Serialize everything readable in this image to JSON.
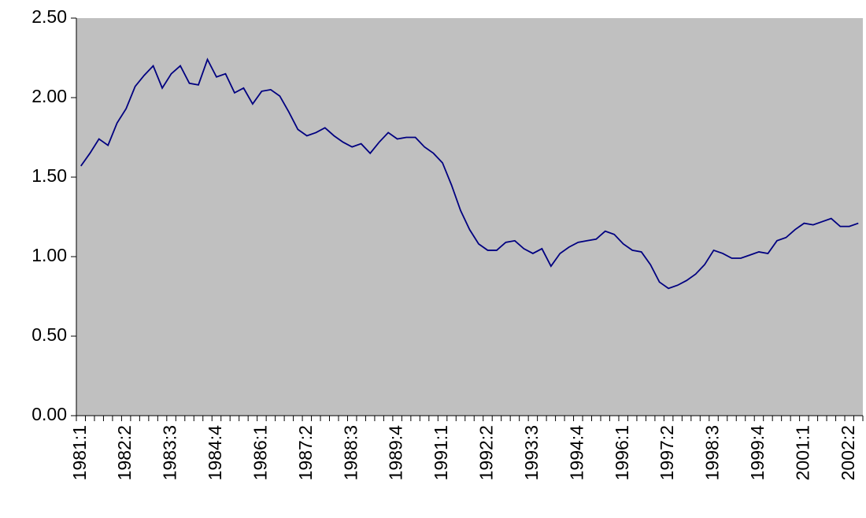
{
  "chart_data": {
    "type": "line",
    "categories": [
      "1981:1",
      null,
      null,
      null,
      null,
      "1982:2",
      null,
      null,
      null,
      null,
      "1983:3",
      null,
      null,
      null,
      null,
      "1984:4",
      null,
      null,
      null,
      null,
      "1986:1",
      null,
      null,
      null,
      null,
      "1987:2",
      null,
      null,
      null,
      null,
      "1988:3",
      null,
      null,
      null,
      null,
      "1989:4",
      null,
      null,
      null,
      null,
      "1991:1",
      null,
      null,
      null,
      null,
      "1992:2",
      null,
      null,
      null,
      null,
      "1993:3",
      null,
      null,
      null,
      null,
      "1994:4",
      null,
      null,
      null,
      null,
      "1996:1",
      null,
      null,
      null,
      null,
      "1997:2",
      null,
      null,
      null,
      null,
      "1998:3",
      null,
      null,
      null,
      null,
      "1999:4",
      null,
      null,
      null,
      null,
      "2001:1",
      null,
      null,
      null,
      null,
      "2002:2",
      null
    ],
    "series": [
      {
        "color": "#000080",
        "values": [
          1.57,
          1.65,
          1.74,
          1.7,
          1.84,
          1.93,
          2.07,
          2.14,
          2.2,
          2.06,
          2.15,
          2.2,
          2.09,
          2.08,
          2.24,
          2.13,
          2.15,
          2.03,
          2.06,
          1.96,
          2.04,
          2.05,
          2.01,
          1.91,
          1.8,
          1.76,
          1.78,
          1.81,
          1.76,
          1.72,
          1.69,
          1.71,
          1.65,
          1.72,
          1.78,
          1.74,
          1.75,
          1.75,
          1.69,
          1.65,
          1.59,
          1.45,
          1.29,
          1.17,
          1.08,
          1.04,
          1.04,
          1.09,
          1.1,
          1.05,
          1.02,
          1.05,
          0.94,
          1.02,
          1.06,
          1.09,
          1.1,
          1.11,
          1.16,
          1.14,
          1.08,
          1.04,
          1.03,
          0.95,
          0.84,
          0.8,
          0.82,
          0.85,
          0.89,
          0.95,
          1.04,
          1.02,
          0.99,
          0.99,
          1.01,
          1.03,
          1.02,
          1.1,
          1.12,
          1.17,
          1.21,
          1.2,
          1.22,
          1.24,
          1.19,
          1.19,
          1.21
        ]
      }
    ],
    "ylim": [
      0,
      2.5
    ],
    "yticks": [
      {
        "value": 0,
        "label": "0.00"
      },
      {
        "value": 0.5,
        "label": "0.50"
      },
      {
        "value": 1,
        "label": "1.00"
      },
      {
        "value": 1.5,
        "label": "1.50"
      },
      {
        "value": 2,
        "label": "2.00"
      },
      {
        "value": 2.5,
        "label": "2.50"
      }
    ],
    "plot_background": "#c0c0c0"
  }
}
